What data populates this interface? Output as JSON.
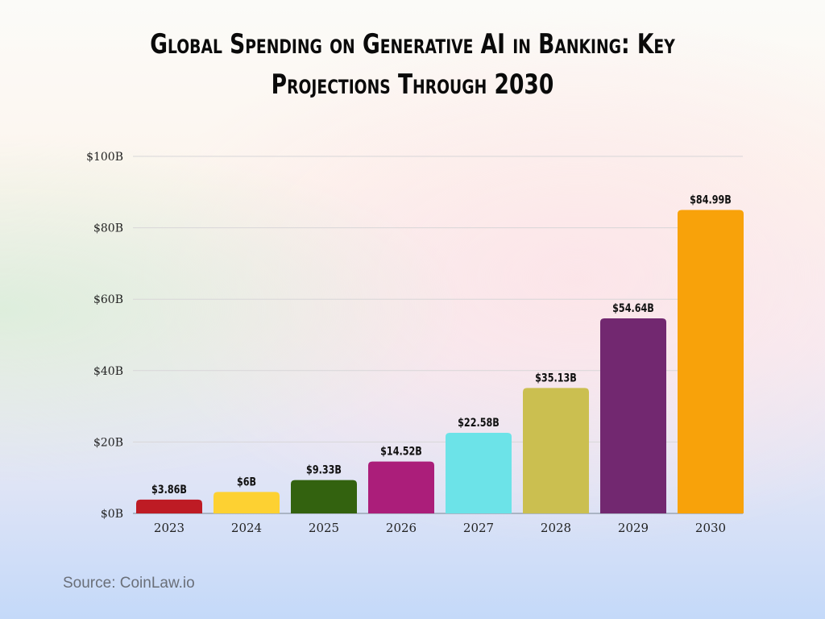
{
  "chart_data": {
    "type": "bar",
    "title_line1": "Global Spending on Generative AI in Banking: Key",
    "title_line2": "Projections Through 2030",
    "categories": [
      "2023",
      "2024",
      "2025",
      "2026",
      "2027",
      "2028",
      "2029",
      "2030"
    ],
    "values": [
      3.86,
      6,
      9.33,
      14.52,
      22.58,
      35.13,
      54.64,
      84.99
    ],
    "data_labels": [
      "$3.86B",
      "$6B",
      "$9.33B",
      "$14.52B",
      "$22.58B",
      "$35.13B",
      "$54.64B",
      "$84.99B"
    ],
    "colors": [
      "#be1b24",
      "#fdd132",
      "#33620f",
      "#ab1e7a",
      "#6ce3e8",
      "#cbbf50",
      "#722870",
      "#f8a20a"
    ],
    "yticks": [
      0,
      20,
      40,
      60,
      80,
      100
    ],
    "ytick_labels": [
      "$0B",
      "$20B",
      "$40B",
      "$60B",
      "$80B",
      "$100B"
    ],
    "ylim": [
      0,
      100
    ],
    "xlabel": "",
    "ylabel": "",
    "grid": true,
    "legend": "none"
  },
  "source": "Source: CoinLaw.io"
}
